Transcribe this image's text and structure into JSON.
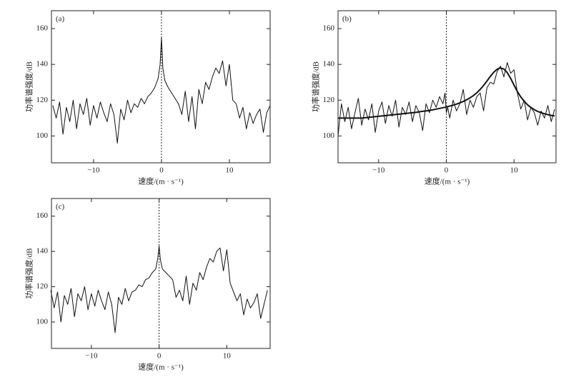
{
  "chart_data": [
    {
      "type": "line",
      "title": "(a)",
      "xlabel": "速度/(m · s⁻¹)",
      "ylabel": "功率谱强度/dB",
      "x": [
        -16,
        -15.5,
        -15,
        -14.5,
        -14,
        -13.5,
        -13,
        -12.5,
        -12,
        -11.5,
        -11,
        -10.5,
        -10,
        -9.5,
        -9,
        -8.5,
        -8,
        -7.5,
        -7,
        -6.5,
        -6,
        -5.5,
        -5,
        -4.5,
        -4,
        -3.5,
        -3,
        -2.5,
        -2,
        -1.5,
        -1,
        -0.5,
        -0.2,
        0,
        0.2,
        0.5,
        1,
        1.5,
        2,
        2.5,
        3,
        3.5,
        4,
        4.5,
        5,
        5.5,
        6,
        6.5,
        7,
        7.5,
        8,
        8.5,
        9,
        9.5,
        10,
        10.5,
        11,
        11.5,
        12,
        12.5,
        13,
        13.5,
        14,
        14.5,
        15,
        15.5,
        16
      ],
      "series": [
        {
          "color": "#111111",
          "line_width": 1,
          "values": [
            117,
            110,
            119,
            101,
            116,
            108,
            120,
            104,
            118,
            112,
            121,
            106,
            117,
            110,
            119,
            113,
            108,
            118,
            112,
            96,
            115,
            109,
            120,
            113,
            118,
            116,
            121,
            118,
            122,
            124,
            127,
            132,
            140,
            155,
            138,
            131,
            127,
            124,
            121,
            118,
            112,
            125,
            108,
            122,
            104,
            126,
            118,
            130,
            126,
            133,
            138,
            135,
            142,
            128,
            140,
            120,
            118,
            110,
            116,
            104,
            113,
            107,
            112,
            115,
            102,
            113,
            117
          ]
        }
      ],
      "reference_line_x": 0,
      "xlim": [
        -16.2,
        16
      ],
      "ylim": [
        85,
        170
      ],
      "xticks": [
        {
          "value": -10,
          "label": "−10"
        },
        0,
        10
      ],
      "yticks": [
        100,
        120,
        140,
        160
      ]
    },
    {
      "type": "line",
      "title": "(b)",
      "xlabel": "速度/(m · s⁻¹)",
      "ylabel": "功率谱强度/dB",
      "x": [
        -16,
        -15.5,
        -15,
        -14.5,
        -14,
        -13.5,
        -13,
        -12.5,
        -12,
        -11.5,
        -11,
        -10.5,
        -10,
        -9.5,
        -9,
        -8.5,
        -8,
        -7.5,
        -7,
        -6.5,
        -6,
        -5.5,
        -5,
        -4.5,
        -4,
        -3.5,
        -3,
        -2.5,
        -2,
        -1.5,
        -1,
        -0.5,
        -0.2,
        0,
        0.2,
        0.5,
        1,
        1.5,
        2,
        2.5,
        3,
        3.5,
        4,
        4.5,
        5,
        5.5,
        6,
        6.5,
        7,
        7.5,
        8,
        8.5,
        9,
        9.5,
        10,
        10.5,
        11,
        11.5,
        12,
        12.5,
        13,
        13.5,
        14,
        14.5,
        15,
        15.5,
        16
      ],
      "series": [
        {
          "color": "#111111",
          "line_width": 1,
          "values": [
            100,
            118,
            108,
            116,
            104,
            113,
            121,
            106,
            115,
            109,
            118,
            102,
            114,
            119,
            107,
            117,
            111,
            120,
            105,
            116,
            112,
            119,
            108,
            117,
            113,
            103,
            118,
            113,
            120,
            116,
            122,
            118,
            124,
            113,
            116,
            110,
            120,
            114,
            118,
            126,
            112,
            120,
            116,
            122,
            124,
            114,
            127,
            130,
            129,
            136,
            139,
            133,
            141,
            135,
            137,
            124,
            115,
            120,
            109,
            116,
            113,
            106,
            114,
            110,
            117,
            108,
            115
          ]
        },
        {
          "color": "#111111",
          "line_width": 2,
          "values": [
            110,
            110,
            110,
            110,
            110,
            110,
            110,
            110,
            110.2,
            110.4,
            110.6,
            110.8,
            111,
            111.2,
            111.4,
            111.6,
            111.8,
            112,
            112.2,
            112.4,
            112.6,
            112.8,
            113,
            113.2,
            113.5,
            113.8,
            114,
            114.3,
            114.6,
            115,
            115.4,
            115.8,
            116,
            116.2,
            116.4,
            116.7,
            117.2,
            117.8,
            118.5,
            119.3,
            120.2,
            121.3,
            122.6,
            124.1,
            126,
            128.2,
            130.7,
            133.3,
            135.6,
            137.3,
            138,
            137.4,
            135.4,
            132.2,
            128.4,
            124.8,
            121.8,
            119.4,
            117.4,
            115.9,
            114.7,
            113.7,
            113,
            112.4,
            111.9,
            111.5,
            111.2
          ]
        }
      ],
      "reference_line_x": 0,
      "xlim": [
        -16,
        16.2
      ],
      "ylim": [
        85,
        170
      ],
      "xticks": [
        {
          "value": -10,
          "label": "−10"
        },
        0,
        10
      ],
      "yticks": [
        100,
        120,
        140,
        160
      ]
    },
    {
      "type": "line",
      "title": "(c)",
      "xlabel": "速度/(m · s⁻¹)",
      "ylabel": "功率谱强度/dB",
      "x": [
        -16,
        -15.5,
        -15,
        -14.5,
        -14,
        -13.5,
        -13,
        -12.5,
        -12,
        -11.5,
        -11,
        -10.5,
        -10,
        -9.5,
        -9,
        -8.5,
        -8,
        -7.5,
        -7,
        -6.5,
        -6,
        -5.5,
        -5,
        -4.5,
        -4,
        -3.5,
        -3,
        -2.5,
        -2,
        -1.5,
        -1,
        -0.5,
        -0.2,
        0,
        0.2,
        0.5,
        1,
        1.5,
        2,
        2.5,
        3,
        3.5,
        4,
        4.5,
        5,
        5.5,
        6,
        6.5,
        7,
        7.5,
        8,
        8.5,
        9,
        9.5,
        10,
        10.5,
        11,
        11.5,
        12,
        12.5,
        13,
        13.5,
        14,
        14.5,
        15,
        15.5,
        16
      ],
      "series": [
        {
          "color": "#111111",
          "line_width": 1,
          "values": [
            118,
            108,
            117,
            100,
            115,
            110,
            119,
            103,
            116,
            112,
            120,
            107,
            116,
            109,
            118,
            112,
            107,
            117,
            110,
            94,
            114,
            110,
            119,
            112,
            117,
            118,
            121,
            120,
            124,
            125,
            128,
            130,
            136,
            143,
            135,
            130,
            128,
            126,
            124,
            114,
            118,
            112,
            126,
            110,
            122,
            118,
            128,
            124,
            131,
            136,
            134,
            140,
            142,
            129,
            141,
            122,
            117,
            112,
            116,
            104,
            113,
            108,
            111,
            116,
            102,
            110,
            118
          ]
        }
      ],
      "reference_line_x": 0,
      "xlim": [
        -15.9,
        16.4
      ],
      "ylim": [
        85,
        170
      ],
      "xticks": [
        {
          "value": -10,
          "label": "−10"
        },
        0,
        10
      ],
      "yticks": [
        100,
        120,
        140,
        160
      ]
    }
  ]
}
